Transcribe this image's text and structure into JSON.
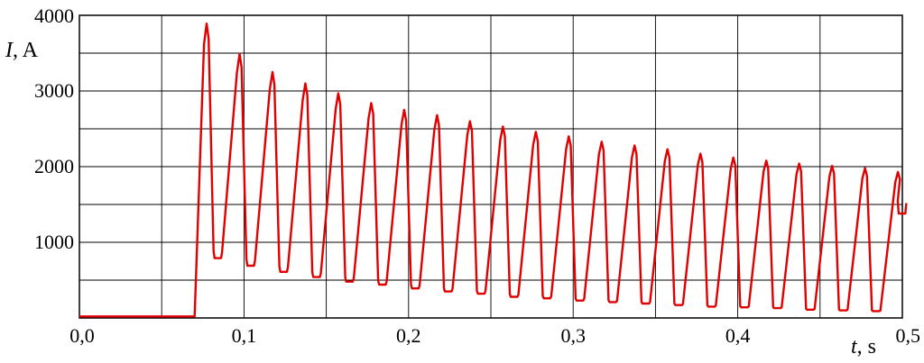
{
  "chart_data": {
    "type": "line",
    "xlabel_var": "t",
    "xlabel_unit": ", s",
    "ylabel_var": "I",
    "ylabel_unit": ", A",
    "xlim": [
      0,
      0.5
    ],
    "ylim": [
      0,
      4000
    ],
    "grid": true,
    "x_ticks": [
      0,
      0.05,
      0.1,
      0.15,
      0.2,
      0.25,
      0.3,
      0.35,
      0.4,
      0.45,
      0.5
    ],
    "x_tick_labels": [
      "0,0",
      "",
      "0,1",
      "",
      "0,2",
      "",
      "0,3",
      "",
      "0,4",
      "",
      "0,5"
    ],
    "y_ticks": [
      0,
      500,
      1000,
      1500,
      2000,
      2500,
      3000,
      3500,
      4000
    ],
    "y_tick_labels": [
      "",
      "",
      "1000",
      "",
      "2000",
      "",
      "3000",
      "",
      "4000"
    ],
    "series": [
      {
        "color": "#e00000",
        "baseline": 20,
        "onset_x": 0.07,
        "points": [
          {
            "x": 0.0773,
            "y": 3890
          },
          {
            "x": 0.0843,
            "y": 790
          },
          {
            "x": 0.0973,
            "y": 3490
          },
          {
            "x": 0.1043,
            "y": 690
          },
          {
            "x": 0.1173,
            "y": 3250
          },
          {
            "x": 0.1243,
            "y": 610
          },
          {
            "x": 0.1373,
            "y": 3100
          },
          {
            "x": 0.1443,
            "y": 540
          },
          {
            "x": 0.1573,
            "y": 2970
          },
          {
            "x": 0.1643,
            "y": 480
          },
          {
            "x": 0.1773,
            "y": 2840
          },
          {
            "x": 0.1843,
            "y": 440
          },
          {
            "x": 0.1973,
            "y": 2750
          },
          {
            "x": 0.2043,
            "y": 390
          },
          {
            "x": 0.2173,
            "y": 2680
          },
          {
            "x": 0.2243,
            "y": 350
          },
          {
            "x": 0.2373,
            "y": 2600
          },
          {
            "x": 0.2443,
            "y": 320
          },
          {
            "x": 0.2573,
            "y": 2530
          },
          {
            "x": 0.2643,
            "y": 280
          },
          {
            "x": 0.2773,
            "y": 2460
          },
          {
            "x": 0.2843,
            "y": 260
          },
          {
            "x": 0.2973,
            "y": 2400
          },
          {
            "x": 0.3043,
            "y": 230
          },
          {
            "x": 0.3173,
            "y": 2330
          },
          {
            "x": 0.3243,
            "y": 210
          },
          {
            "x": 0.3373,
            "y": 2280
          },
          {
            "x": 0.3443,
            "y": 190
          },
          {
            "x": 0.3573,
            "y": 2230
          },
          {
            "x": 0.3643,
            "y": 170
          },
          {
            "x": 0.3773,
            "y": 2170
          },
          {
            "x": 0.3843,
            "y": 150
          },
          {
            "x": 0.3973,
            "y": 2120
          },
          {
            "x": 0.4043,
            "y": 140
          },
          {
            "x": 0.4173,
            "y": 2080
          },
          {
            "x": 0.4243,
            "y": 130
          },
          {
            "x": 0.4373,
            "y": 2040
          },
          {
            "x": 0.4443,
            "y": 110
          },
          {
            "x": 0.4573,
            "y": 2010
          },
          {
            "x": 0.4643,
            "y": 100
          },
          {
            "x": 0.4773,
            "y": 1980
          },
          {
            "x": 0.4843,
            "y": 90
          },
          {
            "x": 0.4973,
            "y": 1930
          },
          {
            "x": 0.5,
            "y": 1380
          }
        ]
      }
    ]
  }
}
